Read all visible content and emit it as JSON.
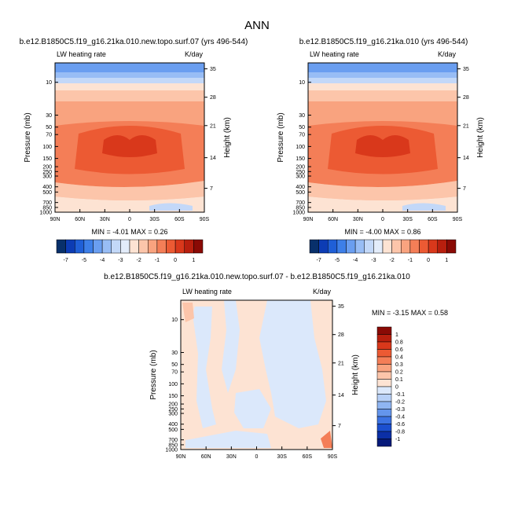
{
  "figure": {
    "title": "ANN"
  },
  "chart_data": [
    {
      "type": "heatmap",
      "title": "b.e12.B1850C5.f19_g16.21ka.010.new.topo.surf.07 (yrs 496-544)",
      "left_label": "LW heating rate",
      "right_label": "K/day",
      "xlabel": "",
      "ylabel": "Pressure (mb)",
      "ylabel_right": "Height (km)",
      "x_ticks": [
        "90N",
        "60N",
        "30N",
        "0",
        "30S",
        "60S",
        "90S"
      ],
      "y_ticks": [
        "10",
        "30",
        "50",
        "70",
        "100",
        "150",
        "200",
        "250",
        "300",
        "400",
        "500",
        "700",
        "850",
        "1000"
      ],
      "y_ticks_right": [
        "35",
        "28",
        "21",
        "14",
        "7"
      ],
      "min_label": "MIN = -4.01   MAX =   0.26",
      "min": -4.01,
      "max": 0.26,
      "colorbar_labels": [
        "-7",
        "-5",
        "-4",
        "-3",
        "-2",
        "-1",
        "0",
        "1"
      ],
      "colorbar_colors": [
        "#08306b",
        "#0c3cb4",
        "#1f5fd7",
        "#3d7fe8",
        "#6a9ef0",
        "#98bdf5",
        "#c3d8f8",
        "#e3ecfa",
        "#fde3d3",
        "#fcc5aa",
        "#f9a37f",
        "#f47e57",
        "#ec5a33",
        "#d9381b",
        "#b81f0e",
        "#8a0a05"
      ]
    },
    {
      "type": "heatmap",
      "title": "b.e12.B1850C5.f19_g16.21ka.010 (yrs 496-544)",
      "left_label": "LW heating rate",
      "right_label": "K/day",
      "xlabel": "",
      "ylabel": "Pressure (mb)",
      "ylabel_right": "Height (km)",
      "x_ticks": [
        "90N",
        "60N",
        "30N",
        "0",
        "30S",
        "60S",
        "90S"
      ],
      "y_ticks": [
        "10",
        "30",
        "50",
        "70",
        "100",
        "150",
        "200",
        "250",
        "300",
        "400",
        "500",
        "700",
        "850",
        "1000"
      ],
      "y_ticks_right": [
        "35",
        "28",
        "21",
        "14",
        "7"
      ],
      "min_label": "MIN = -4.00   MAX =   0.86",
      "min": -4.0,
      "max": 0.86,
      "colorbar_labels": [
        "-7",
        "-5",
        "-4",
        "-3",
        "-2",
        "-1",
        "0",
        "1"
      ],
      "colorbar_colors": [
        "#08306b",
        "#0c3cb4",
        "#1f5fd7",
        "#3d7fe8",
        "#6a9ef0",
        "#98bdf5",
        "#c3d8f8",
        "#e3ecfa",
        "#fde3d3",
        "#fcc5aa",
        "#f9a37f",
        "#f47e57",
        "#ec5a33",
        "#d9381b",
        "#b81f0e",
        "#8a0a05"
      ]
    },
    {
      "type": "heatmap",
      "title": "b.e12.B1850C5.f19_g16.21ka.010.new.topo.surf.07 - b.e12.B1850C5.f19_g16.21ka.010",
      "left_label": "LW heating rate",
      "right_label": "K/day",
      "xlabel": "",
      "ylabel": "Pressure (mb)",
      "ylabel_right": "Height (km)",
      "x_ticks": [
        "90N",
        "60N",
        "30N",
        "0",
        "30S",
        "60S",
        "90S"
      ],
      "y_ticks": [
        "10",
        "30",
        "50",
        "70",
        "100",
        "150",
        "200",
        "250",
        "300",
        "400",
        "500",
        "700",
        "850",
        "1000"
      ],
      "y_ticks_right": [
        "35",
        "28",
        "21",
        "14",
        "7"
      ],
      "min_label": "MIN =  -3.15   MAX =   0.58",
      "min": -3.15,
      "max": 0.58,
      "colorbar_labels": [
        "1",
        "0.8",
        "0.6",
        "0.4",
        "0.3",
        "0.2",
        "0.1",
        "0",
        "-0.1",
        "-0.2",
        "-0.3",
        "-0.4",
        "-0.6",
        "-0.8",
        "-1"
      ],
      "colorbar_colors": [
        "#8a0a05",
        "#b81f0e",
        "#d9381b",
        "#ec5a33",
        "#f47e57",
        "#f9a37f",
        "#fcc5aa",
        "#fde3d3",
        "#dbe8fb",
        "#b7d0f7",
        "#8fb5f2",
        "#6495ec",
        "#3c73e3",
        "#1b4fcf",
        "#0b2fa6",
        "#061a7a"
      ]
    }
  ]
}
